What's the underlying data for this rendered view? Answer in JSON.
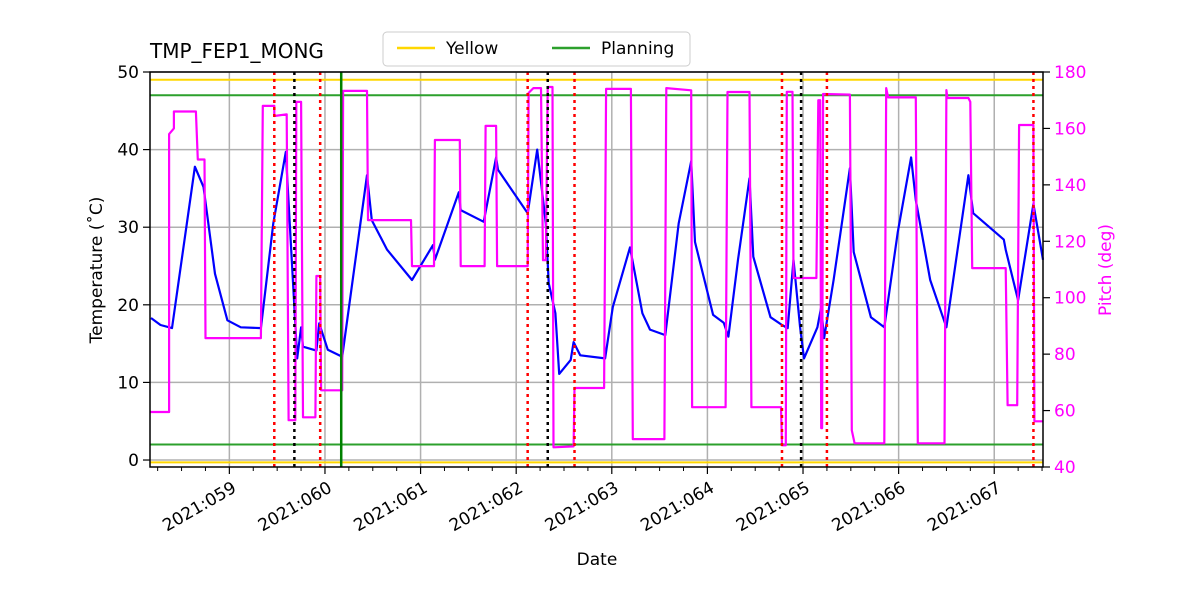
{
  "chart_data": {
    "type": "line",
    "title": "TMP_FEP1_MONG",
    "xlabel": "Date",
    "ylabel": "Temperature ($^\\circ$C)",
    "ylabel_display": "Temperature (˚C)",
    "y2label": "Pitch (deg)",
    "xlim": [
      "2021:058.17",
      "2021:067.51"
    ],
    "ylim": [
      -0.9,
      50
    ],
    "y2lim": [
      40,
      180
    ],
    "grid": true,
    "legend_position": "top-center",
    "x_ticks": [
      "2021:059",
      "2021:060",
      "2021:061",
      "2021:062",
      "2021:063",
      "2021:064",
      "2021:065",
      "2021:066",
      "2021:067"
    ],
    "y_ticks": [
      "0",
      "10",
      "20",
      "30",
      "40",
      "50"
    ],
    "y2_ticks": [
      "40",
      "60",
      "80",
      "100",
      "120",
      "140",
      "160",
      "180"
    ],
    "colors": {
      "temperature": "#0000ff",
      "pitch": "#ff00ff",
      "yellow": "#ffd700",
      "planning": "#2ca02c",
      "red_limit": "#ff0000",
      "black_marker": "#000000",
      "grid": "#b0b0b0"
    },
    "legend": [
      {
        "label": "Yellow",
        "color": "#ffd700"
      },
      {
        "label": "Planning",
        "color": "#2ca02c"
      }
    ],
    "hlines": [
      {
        "legend": "Yellow",
        "value": 49,
        "color": "#ffd700"
      },
      {
        "legend": "Yellow",
        "value": -0.3,
        "color": "#ffd700"
      },
      {
        "legend": "Planning",
        "value": 47,
        "color": "#2ca02c"
      },
      {
        "legend": "Planning",
        "value": 2,
        "color": "#2ca02c"
      }
    ],
    "vlines": [
      {
        "x": "2021:059.47",
        "style": "red-dotted"
      },
      {
        "x": "2021:059.95",
        "style": "red-dotted"
      },
      {
        "x": "2021:062.12",
        "style": "red-dotted"
      },
      {
        "x": "2021:062.61",
        "style": "red-dotted"
      },
      {
        "x": "2021:064.78",
        "style": "red-dotted"
      },
      {
        "x": "2021:065.25",
        "style": "red-dotted"
      },
      {
        "x": "2021:067.41",
        "style": "red-dotted"
      },
      {
        "x": "2021:059.68",
        "style": "black-dotted"
      },
      {
        "x": "2021:062.33",
        "style": "black-dotted"
      },
      {
        "x": "2021:064.98",
        "style": "black-dotted"
      },
      {
        "x": "2021:060.17",
        "style": "green-solid"
      }
    ],
    "series": [
      {
        "axis": "left",
        "color": "#0000ff",
        "points": [
          [
            "2021:058.18",
            18.3
          ],
          [
            "2021:058.28",
            17.4
          ],
          [
            "2021:058.40",
            17.0
          ],
          [
            "2021:058.64",
            37.8
          ],
          [
            "2021:058.73",
            35.2
          ],
          [
            "2021:058.85",
            24.0
          ],
          [
            "2021:058.98",
            18.0
          ],
          [
            "2021:059.12",
            17.1
          ],
          [
            "2021:059.33",
            17.0
          ],
          [
            "2021:059.46",
            30.5
          ],
          [
            "2021:059.59",
            39.7
          ],
          [
            "2021:059.71",
            13.1
          ],
          [
            "2021:059.75",
            17.1
          ],
          [
            "2021:059.77",
            14.6
          ],
          [
            "2021:059.91",
            14.1
          ],
          [
            "2021:059.94",
            17.6
          ],
          [
            "2021:060.03",
            14.2
          ],
          [
            "2021:060.18",
            13.3
          ],
          [
            "2021:060.44",
            36.7
          ],
          [
            "2021:060.49",
            30.9
          ],
          [
            "2021:060.65",
            27.1
          ],
          [
            "2021:060.91",
            23.2
          ],
          [
            "2021:061.13",
            27.7
          ],
          [
            "2021:061.15",
            25.8
          ],
          [
            "2021:061.40",
            34.5
          ],
          [
            "2021:061.42",
            32.2
          ],
          [
            "2021:061.66",
            30.7
          ],
          [
            "2021:061.79",
            39.0
          ],
          [
            "2021:061.81",
            37.4
          ],
          [
            "2021:062.12",
            31.8
          ],
          [
            "2021:062.22",
            40.0
          ],
          [
            "2021:062.31",
            30.5
          ],
          [
            "2021:062.34",
            22.8
          ],
          [
            "2021:062.41",
            18.9
          ],
          [
            "2021:062.45",
            11.1
          ],
          [
            "2021:062.57",
            12.9
          ],
          [
            "2021:062.60",
            15.2
          ],
          [
            "2021:062.67",
            13.5
          ],
          [
            "2021:062.93",
            13.1
          ],
          [
            "2021:063.01",
            19.7
          ],
          [
            "2021:063.19",
            27.4
          ],
          [
            "2021:063.32",
            18.9
          ],
          [
            "2021:063.40",
            16.8
          ],
          [
            "2021:063.56",
            16.1
          ],
          [
            "2021:063.70",
            30.5
          ],
          [
            "2021:063.83",
            38.5
          ],
          [
            "2021:063.87",
            28.1
          ],
          [
            "2021:064.06",
            18.7
          ],
          [
            "2021:064.17",
            17.7
          ],
          [
            "2021:064.22",
            15.9
          ],
          [
            "2021:064.32",
            25.8
          ],
          [
            "2021:064.44",
            36.3
          ],
          [
            "2021:064.48",
            26.2
          ],
          [
            "2021:064.66",
            18.4
          ],
          [
            "2021:064.78",
            17.4
          ],
          [
            "2021:064.84",
            17.0
          ],
          [
            "2021:064.90",
            25.8
          ],
          [
            "2021:064.97",
            17.1
          ],
          [
            "2021:065.01",
            13.1
          ],
          [
            "2021:065.15",
            17.1
          ],
          [
            "2021:065.19",
            19.7
          ],
          [
            "2021:065.22",
            15.7
          ],
          [
            "2021:065.32",
            23.2
          ],
          [
            "2021:065.49",
            37.6
          ],
          [
            "2021:065.53",
            26.8
          ],
          [
            "2021:065.71",
            18.4
          ],
          [
            "2021:065.85",
            17.1
          ],
          [
            "2021:065.99",
            29.3
          ],
          [
            "2021:066.13",
            39.0
          ],
          [
            "2021:066.18",
            33.5
          ],
          [
            "2021:066.33",
            23.2
          ],
          [
            "2021:066.50",
            17.1
          ],
          [
            "2021:066.62",
            27.4
          ],
          [
            "2021:066.73",
            36.7
          ],
          [
            "2021:066.78",
            31.8
          ],
          [
            "2021:067.10",
            28.4
          ],
          [
            "2021:067.12",
            27.1
          ],
          [
            "2021:067.25",
            20.6
          ],
          [
            "2021:067.41",
            33.0
          ],
          [
            "2021:067.51",
            25.8
          ]
        ]
      },
      {
        "axis": "right",
        "color": "#ff00ff",
        "points": [
          [
            "2021:058.17",
            59.5
          ],
          [
            "2021:058.37",
            59.5
          ],
          [
            "2021:058.37",
            158
          ],
          [
            "2021:058.42",
            160
          ],
          [
            "2021:058.42",
            166
          ],
          [
            "2021:058.65",
            166
          ],
          [
            "2021:058.67",
            149
          ],
          [
            "2021:058.74",
            149
          ],
          [
            "2021:058.75",
            85.7
          ],
          [
            "2021:059.33",
            85.7
          ],
          [
            "2021:059.35",
            168
          ],
          [
            "2021:059.47",
            168
          ],
          [
            "2021:059.47",
            164.4
          ],
          [
            "2021:059.60",
            165
          ],
          [
            "2021:059.62",
            56.6
          ],
          [
            "2021:059.69",
            56.6
          ],
          [
            "2021:059.70",
            169.4
          ],
          [
            "2021:059.75",
            169.4
          ],
          [
            "2021:059.77",
            57.6
          ],
          [
            "2021:059.90",
            57.6
          ],
          [
            "2021:059.91",
            107.7
          ],
          [
            "2021:059.95",
            107.7
          ],
          [
            "2021:059.96",
            67.2
          ],
          [
            "2021:060.18",
            67.2
          ],
          [
            "2021:060.19",
            173.3
          ],
          [
            "2021:060.44",
            173.3
          ],
          [
            "2021:060.45",
            127.5
          ],
          [
            "2021:060.90",
            127.5
          ],
          [
            "2021:060.91",
            111.2
          ],
          [
            "2021:061.14",
            111.2
          ],
          [
            "2021:061.15",
            155.9
          ],
          [
            "2021:061.41",
            155.9
          ],
          [
            "2021:061.42",
            111.2
          ],
          [
            "2021:061.67",
            111.2
          ],
          [
            "2021:061.68",
            160.9
          ],
          [
            "2021:061.79",
            160.9
          ],
          [
            "2021:061.80",
            111.2
          ],
          [
            "2021:062.12",
            111.2
          ],
          [
            "2021:062.13",
            172.6
          ],
          [
            "2021:062.18",
            174.3
          ],
          [
            "2021:062.26",
            174.3
          ],
          [
            "2021:062.28",
            113.3
          ],
          [
            "2021:062.31",
            113.3
          ],
          [
            "2021:062.33",
            174.7
          ],
          [
            "2021:062.38",
            174.7
          ],
          [
            "2021:062.39",
            47
          ],
          [
            "2021:062.60",
            47.3
          ],
          [
            "2021:062.61",
            68
          ],
          [
            "2021:062.92",
            68
          ],
          [
            "2021:062.94",
            174
          ],
          [
            "2021:063.20",
            174
          ],
          [
            "2021:063.22",
            49.9
          ],
          [
            "2021:063.55",
            49.9
          ],
          [
            "2021:063.57",
            174.3
          ],
          [
            "2021:063.83",
            173.5
          ],
          [
            "2021:063.84",
            61.2
          ],
          [
            "2021:064.19",
            61.2
          ],
          [
            "2021:064.21",
            172.9
          ],
          [
            "2021:064.44",
            172.9
          ],
          [
            "2021:064.46",
            61.2
          ],
          [
            "2021:064.77",
            61.2
          ],
          [
            "2021:064.78",
            47.7
          ],
          [
            "2021:064.82",
            47.7
          ],
          [
            "2021:064.83",
            173
          ],
          [
            "2021:064.89",
            173
          ],
          [
            "2021:064.90",
            107
          ],
          [
            "2021:065.14",
            107
          ],
          [
            "2021:065.16",
            170
          ],
          [
            "2021:065.18",
            170
          ],
          [
            "2021:065.19",
            53.8
          ],
          [
            "2021:065.20",
            53.8
          ],
          [
            "2021:065.21",
            172.2
          ],
          [
            "2021:065.49",
            172
          ],
          [
            "2021:065.51",
            53
          ],
          [
            "2021:065.54",
            48.4
          ],
          [
            "2021:065.85",
            48.4
          ],
          [
            "2021:065.87",
            174.3
          ],
          [
            "2021:065.89",
            171
          ],
          [
            "2021:066.18",
            171
          ],
          [
            "2021:066.20",
            48.4
          ],
          [
            "2021:066.48",
            48.4
          ],
          [
            "2021:066.50",
            173.6
          ],
          [
            "2021:066.51",
            170.8
          ],
          [
            "2021:066.73",
            170.8
          ],
          [
            "2021:066.75",
            169.4
          ],
          [
            "2021:066.77",
            110.5
          ],
          [
            "2021:067.12",
            110.5
          ],
          [
            "2021:067.14",
            61.9
          ],
          [
            "2021:067.24",
            61.9
          ],
          [
            "2021:067.26",
            161.2
          ],
          [
            "2021:067.41",
            161.2
          ],
          [
            "2021:067.42",
            56.2
          ],
          [
            "2021:067.51",
            56.2
          ]
        ]
      }
    ]
  }
}
